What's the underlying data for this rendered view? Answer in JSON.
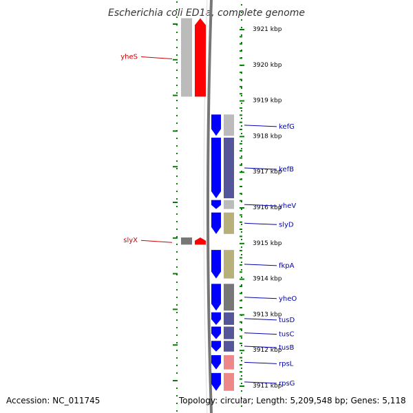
{
  "title": "Escherichia coli ED1a, complete genome",
  "footer": {
    "accession": "Accession: NC_011745",
    "topology": "Topology: circular; Length: 5,209,548 bp; Genes: 5,118"
  },
  "scale": {
    "ticks": [
      {
        "kbp": 3921,
        "label": "3921 kbp"
      },
      {
        "kbp": 3920,
        "label": "3920 kbp"
      },
      {
        "kbp": 3919,
        "label": "3919 kbp"
      },
      {
        "kbp": 3918,
        "label": "3918 kbp"
      },
      {
        "kbp": 3917,
        "label": "3917 kbp"
      },
      {
        "kbp": 3916,
        "label": "3916 kbp"
      },
      {
        "kbp": 3915,
        "label": "3915 kbp"
      },
      {
        "kbp": 3914,
        "label": "3914 kbp"
      },
      {
        "kbp": 3913,
        "label": "3913 kbp"
      },
      {
        "kbp": 3912,
        "label": "3912 kbp"
      },
      {
        "kbp": 3911,
        "label": "3911 kbp"
      }
    ]
  },
  "colors": {
    "forward_strand": "#ff0000",
    "reverse_strand": "#0000ff",
    "forward_label": "#cc0000",
    "reverse_label": "#0000aa",
    "tick": "#008000",
    "backbone": "#777777",
    "cog_gray": "#bbbbbb",
    "cog_purple": "#555599",
    "cog_olive": "#b7b07a",
    "cog_dark": "#777777",
    "cog_pink": "#ee8888"
  },
  "genes": [
    {
      "name": "yheS",
      "strand": "forward",
      "start_kbp": 3921.3,
      "end_kbp": 3919.1,
      "cog": "cog_gray"
    },
    {
      "name": "slyX",
      "strand": "forward",
      "start_kbp": 3915.15,
      "end_kbp": 3914.95,
      "cog": "cog_dark"
    },
    {
      "name": "kefG",
      "strand": "reverse",
      "start_kbp": 3918.6,
      "end_kbp": 3918.0,
      "cog": "cog_gray"
    },
    {
      "name": "kefB",
      "strand": "reverse",
      "start_kbp": 3917.95,
      "end_kbp": 3916.25,
      "cog": "cog_purple"
    },
    {
      "name": "yheV",
      "strand": "reverse",
      "start_kbp": 3916.2,
      "end_kbp": 3915.95,
      "cog": "cog_gray"
    },
    {
      "name": "slyD",
      "strand": "reverse",
      "start_kbp": 3915.85,
      "end_kbp": 3915.25,
      "cog": "cog_olive"
    },
    {
      "name": "fkpA",
      "strand": "reverse",
      "start_kbp": 3914.8,
      "end_kbp": 3914.0,
      "cog": "cog_olive"
    },
    {
      "name": "yheO",
      "strand": "reverse",
      "start_kbp": 3913.85,
      "end_kbp": 3913.1,
      "cog": "cog_dark"
    },
    {
      "name": "tusD",
      "strand": "reverse",
      "start_kbp": 3913.05,
      "end_kbp": 3912.7,
      "cog": "cog_purple"
    },
    {
      "name": "tusC",
      "strand": "reverse",
      "start_kbp": 3912.65,
      "end_kbp": 3912.3,
      "cog": "cog_purple"
    },
    {
      "name": "tusB",
      "strand": "reverse",
      "start_kbp": 3912.25,
      "end_kbp": 3911.95,
      "cog": "cog_purple"
    },
    {
      "name": "rpsL",
      "strand": "reverse",
      "start_kbp": 3911.85,
      "end_kbp": 3911.45,
      "cog": "cog_pink"
    },
    {
      "name": "rpsG",
      "strand": "reverse",
      "start_kbp": 3911.35,
      "end_kbp": 3910.85,
      "cog": "cog_pink"
    }
  ]
}
